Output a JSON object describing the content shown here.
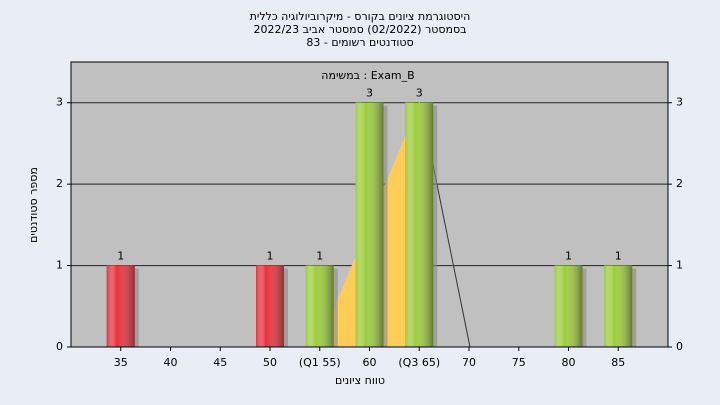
{
  "chart_data": {
    "type": "bar",
    "title": "היסטוגרמת ציונים בקורס - מיקרוביולוגיה כללית",
    "subtitle": "בסמסטר  (02/2022)  סמסטר אביב 2022/23",
    "subtitle2": "סטודנטים רשומים - 83",
    "annotation": "במשימה : Exam_B",
    "ylabel": "מספר סטודנטים",
    "xlabel": "טווח ציונים",
    "categories": [
      "35",
      "40",
      "45",
      "50",
      "(Q1 55)",
      "60",
      "(Q3 65)",
      "70",
      "75",
      "80",
      "85"
    ],
    "values": [
      1,
      0,
      0,
      1,
      1,
      3,
      3,
      0,
      0,
      1,
      1
    ],
    "colors": [
      "#e8303a",
      "#9ccc3a",
      "#9ccc3a",
      "#e8303a",
      "#9ccc3a",
      "#9ccc3a",
      "#9ccc3a",
      "#9ccc3a",
      "#9ccc3a",
      "#9ccc3a",
      "#9ccc3a"
    ],
    "ylim": [
      0,
      3.5
    ],
    "yticks": [
      0,
      1,
      2,
      3
    ],
    "grid": true
  }
}
